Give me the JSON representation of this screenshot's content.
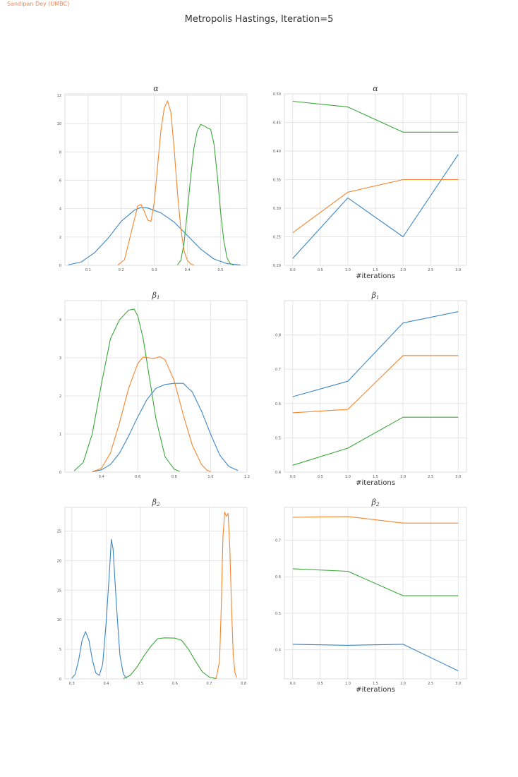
{
  "watermark": "Sandipan Dey (UMBC)",
  "suptitle": "Metropolis Hastings, Iteration=5",
  "colors": {
    "s1": "#3a86c8",
    "s2": "#f5852d",
    "s3": "#3aa83a",
    "grid": "#e5e5e5",
    "spine": "#dddddd"
  },
  "chart_data": [
    {
      "type": "line",
      "title": "α",
      "title_sub": "",
      "xlabel": "",
      "xlim": [
        0.03,
        0.58
      ],
      "ylim": [
        0,
        12.1
      ],
      "xticks": [
        0.1,
        0.2,
        0.3,
        0.4,
        0.5
      ],
      "yticks": [
        0,
        2,
        4,
        6,
        8,
        10,
        12
      ],
      "xtick_labels": [
        "0.1",
        "0.2",
        "0.3",
        "0.4",
        "0.5"
      ],
      "ytick_labels": [
        "0",
        "2",
        "4",
        "6",
        "8",
        "10",
        "12"
      ],
      "series": [
        {
          "color": "s1",
          "points": [
            [
              0.04,
              0.03
            ],
            [
              0.08,
              0.25
            ],
            [
              0.12,
              0.9
            ],
            [
              0.16,
              1.9
            ],
            [
              0.2,
              3.1
            ],
            [
              0.24,
              3.9
            ],
            [
              0.26,
              4.1
            ],
            [
              0.28,
              4.05
            ],
            [
              0.32,
              3.7
            ],
            [
              0.36,
              3.05
            ],
            [
              0.4,
              2.1
            ],
            [
              0.44,
              1.15
            ],
            [
              0.48,
              0.45
            ],
            [
              0.52,
              0.12
            ],
            [
              0.56,
              0.02
            ]
          ]
        },
        {
          "color": "s2",
          "points": [
            [
              0.19,
              0.03
            ],
            [
              0.21,
              0.4
            ],
            [
              0.23,
              2.3
            ],
            [
              0.25,
              4.2
            ],
            [
              0.26,
              4.3
            ],
            [
              0.27,
              3.8
            ],
            [
              0.28,
              3.2
            ],
            [
              0.29,
              3.1
            ],
            [
              0.3,
              4.5
            ],
            [
              0.31,
              7.0
            ],
            [
              0.32,
              9.5
            ],
            [
              0.33,
              11.1
            ],
            [
              0.34,
              11.6
            ],
            [
              0.35,
              10.8
            ],
            [
              0.36,
              8.2
            ],
            [
              0.37,
              5.1
            ],
            [
              0.38,
              2.6
            ],
            [
              0.39,
              1.0
            ],
            [
              0.4,
              0.35
            ],
            [
              0.41,
              0.1
            ],
            [
              0.42,
              0.02
            ]
          ]
        },
        {
          "color": "s3",
          "points": [
            [
              0.37,
              0.03
            ],
            [
              0.38,
              0.35
            ],
            [
              0.39,
              1.6
            ],
            [
              0.4,
              3.9
            ],
            [
              0.41,
              6.3
            ],
            [
              0.42,
              8.3
            ],
            [
              0.43,
              9.5
            ],
            [
              0.44,
              9.95
            ],
            [
              0.45,
              9.85
            ],
            [
              0.46,
              9.7
            ],
            [
              0.47,
              9.6
            ],
            [
              0.48,
              8.6
            ],
            [
              0.49,
              6.4
            ],
            [
              0.5,
              3.8
            ],
            [
              0.51,
              1.7
            ],
            [
              0.52,
              0.5
            ],
            [
              0.53,
              0.12
            ],
            [
              0.54,
              0.02
            ]
          ]
        }
      ]
    },
    {
      "type": "line",
      "title": "α",
      "title_sub": "",
      "xlabel": "#iterations",
      "xlim": [
        -0.15,
        3.15
      ],
      "ylim": [
        0.2,
        0.5
      ],
      "xticks": [
        0,
        0.5,
        1,
        1.5,
        2,
        2.5,
        3
      ],
      "yticks": [
        0.2,
        0.25,
        0.3,
        0.35,
        0.4,
        0.45,
        0.5
      ],
      "xtick_labels": [
        "0.0",
        "0.5",
        "1.0",
        "1.5",
        "2.0",
        "2.5",
        "3.0"
      ],
      "ytick_labels": [
        "0.20",
        "0.25",
        "0.30",
        "0.35",
        "0.40",
        "0.45",
        "0.50"
      ],
      "series": [
        {
          "color": "s1",
          "points": [
            [
              0,
              0.212
            ],
            [
              1,
              0.318
            ],
            [
              2,
              0.25
            ],
            [
              3,
              0.394
            ]
          ]
        },
        {
          "color": "s2",
          "points": [
            [
              0,
              0.257
            ],
            [
              1,
              0.328
            ],
            [
              2,
              0.35
            ],
            [
              3,
              0.35
            ]
          ]
        },
        {
          "color": "s3",
          "points": [
            [
              0,
              0.487
            ],
            [
              1,
              0.477
            ],
            [
              2,
              0.433
            ],
            [
              3,
              0.433
            ]
          ]
        }
      ]
    },
    {
      "type": "line",
      "title": "β",
      "title_sub": "1",
      "xlabel": "",
      "xlim": [
        0.2,
        1.2
      ],
      "ylim": [
        0,
        4.5
      ],
      "xticks": [
        0.4,
        0.6,
        0.8,
        1.0,
        1.2
      ],
      "yticks": [
        0,
        1,
        2,
        3,
        4
      ],
      "xtick_labels": [
        "0.4",
        "0.6",
        "0.8",
        "1.0",
        "1.2"
      ],
      "ytick_labels": [
        "0",
        "1",
        "2",
        "3",
        "4"
      ],
      "series": [
        {
          "color": "s1",
          "points": [
            [
              0.35,
              0.01
            ],
            [
              0.4,
              0.06
            ],
            [
              0.45,
              0.2
            ],
            [
              0.5,
              0.5
            ],
            [
              0.55,
              0.95
            ],
            [
              0.6,
              1.45
            ],
            [
              0.65,
              1.9
            ],
            [
              0.7,
              2.2
            ],
            [
              0.75,
              2.3
            ],
            [
              0.8,
              2.33
            ],
            [
              0.85,
              2.33
            ],
            [
              0.9,
              2.1
            ],
            [
              0.95,
              1.6
            ],
            [
              1.0,
              1.0
            ],
            [
              1.05,
              0.45
            ],
            [
              1.1,
              0.15
            ],
            [
              1.15,
              0.04
            ]
          ]
        },
        {
          "color": "s2",
          "points": [
            [
              0.35,
              0.01
            ],
            [
              0.4,
              0.1
            ],
            [
              0.45,
              0.5
            ],
            [
              0.5,
              1.3
            ],
            [
              0.55,
              2.2
            ],
            [
              0.6,
              2.85
            ],
            [
              0.63,
              3.02
            ],
            [
              0.66,
              3.0
            ],
            [
              0.69,
              2.98
            ],
            [
              0.72,
              3.03
            ],
            [
              0.75,
              2.95
            ],
            [
              0.8,
              2.4
            ],
            [
              0.85,
              1.5
            ],
            [
              0.9,
              0.7
            ],
            [
              0.95,
              0.2
            ],
            [
              0.98,
              0.05
            ],
            [
              1.0,
              0.01
            ]
          ]
        },
        {
          "color": "s3",
          "points": [
            [
              0.25,
              0.03
            ],
            [
              0.3,
              0.25
            ],
            [
              0.35,
              1.0
            ],
            [
              0.4,
              2.3
            ],
            [
              0.45,
              3.5
            ],
            [
              0.5,
              4.0
            ],
            [
              0.55,
              4.25
            ],
            [
              0.58,
              4.28
            ],
            [
              0.6,
              4.1
            ],
            [
              0.63,
              3.5
            ],
            [
              0.65,
              2.9
            ],
            [
              0.7,
              1.4
            ],
            [
              0.75,
              0.4
            ],
            [
              0.8,
              0.08
            ],
            [
              0.83,
              0.02
            ]
          ]
        }
      ]
    },
    {
      "type": "line",
      "title": "β",
      "title_sub": "1",
      "xlabel": "#iterations",
      "xlim": [
        -0.15,
        3.15
      ],
      "ylim": [
        0.4,
        0.9
      ],
      "xticks": [
        0,
        0.5,
        1,
        1.5,
        2,
        2.5,
        3
      ],
      "yticks": [
        0.4,
        0.5,
        0.6,
        0.7,
        0.8
      ],
      "xtick_labels": [
        "0.0",
        "0.5",
        "1.0",
        "1.5",
        "2.0",
        "2.5",
        "3.0"
      ],
      "ytick_labels": [
        "0.4",
        "0.5",
        "0.6",
        "0.7",
        "0.8"
      ],
      "series": [
        {
          "color": "s1",
          "points": [
            [
              0,
              0.62
            ],
            [
              1,
              0.665
            ],
            [
              2,
              0.835
            ],
            [
              3,
              0.868
            ]
          ]
        },
        {
          "color": "s2",
          "points": [
            [
              0,
              0.573
            ],
            [
              1,
              0.583
            ],
            [
              2,
              0.74
            ],
            [
              3,
              0.74
            ]
          ]
        },
        {
          "color": "s3",
          "points": [
            [
              0,
              0.42
            ],
            [
              1,
              0.47
            ],
            [
              2,
              0.56
            ],
            [
              3,
              0.56
            ]
          ]
        }
      ]
    },
    {
      "type": "line",
      "title": "β",
      "title_sub": "2",
      "xlabel": "",
      "xlim": [
        0.28,
        0.81
      ],
      "ylim": [
        0,
        29
      ],
      "xticks": [
        0.3,
        0.4,
        0.5,
        0.6,
        0.7,
        0.8
      ],
      "yticks": [
        0,
        5,
        10,
        15,
        20,
        25
      ],
      "xtick_labels": [
        "0.3",
        "0.4",
        "0.5",
        "0.6",
        "0.7",
        "0.8"
      ],
      "ytick_labels": [
        "0",
        "5",
        "10",
        "15",
        "20",
        "25"
      ],
      "series": [
        {
          "color": "s1",
          "points": [
            [
              0.3,
              0.1
            ],
            [
              0.31,
              0.8
            ],
            [
              0.32,
              3.2
            ],
            [
              0.33,
              6.5
            ],
            [
              0.34,
              8.0
            ],
            [
              0.35,
              6.5
            ],
            [
              0.36,
              3.2
            ],
            [
              0.37,
              1.0
            ],
            [
              0.38,
              0.6
            ],
            [
              0.39,
              2.5
            ],
            [
              0.4,
              9.5
            ],
            [
              0.41,
              18.5
            ],
            [
              0.415,
              23.6
            ],
            [
              0.42,
              22.0
            ],
            [
              0.43,
              12.5
            ],
            [
              0.44,
              4.0
            ],
            [
              0.45,
              0.8
            ],
            [
              0.46,
              0.1
            ]
          ]
        },
        {
          "color": "s3",
          "points": [
            [
              0.45,
              0.05
            ],
            [
              0.47,
              0.6
            ],
            [
              0.49,
              2.0
            ],
            [
              0.51,
              3.9
            ],
            [
              0.53,
              5.5
            ],
            [
              0.55,
              6.8
            ],
            [
              0.57,
              6.95
            ],
            [
              0.6,
              6.9
            ],
            [
              0.62,
              6.5
            ],
            [
              0.64,
              5.0
            ],
            [
              0.66,
              3.0
            ],
            [
              0.68,
              1.2
            ],
            [
              0.7,
              0.3
            ],
            [
              0.72,
              0.05
            ]
          ]
        },
        {
          "color": "s2",
          "points": [
            [
              0.72,
              0.05
            ],
            [
              0.73,
              3.0
            ],
            [
              0.735,
              12.0
            ],
            [
              0.74,
              24.0
            ],
            [
              0.745,
              28.2
            ],
            [
              0.75,
              27.5
            ],
            [
              0.755,
              28.0
            ],
            [
              0.76,
              22.0
            ],
            [
              0.765,
              12.0
            ],
            [
              0.77,
              4.0
            ],
            [
              0.775,
              1.0
            ],
            [
              0.78,
              0.2
            ]
          ]
        }
      ]
    },
    {
      "type": "line",
      "title": "β",
      "title_sub": "2",
      "xlabel": "#iterations",
      "xlim": [
        -0.15,
        3.15
      ],
      "ylim": [
        0.32,
        0.79
      ],
      "xticks": [
        0,
        0.5,
        1,
        1.5,
        2,
        2.5,
        3
      ],
      "yticks": [
        0.4,
        0.5,
        0.6,
        0.7
      ],
      "xtick_labels": [
        "0.0",
        "0.5",
        "1.0",
        "1.5",
        "2.0",
        "2.5",
        "3.0"
      ],
      "ytick_labels": [
        "0.4",
        "0.5",
        "0.6",
        "0.7"
      ],
      "series": [
        {
          "color": "s1",
          "points": [
            [
              0,
              0.415
            ],
            [
              1,
              0.412
            ],
            [
              2,
              0.415
            ],
            [
              3,
              0.342
            ]
          ]
        },
        {
          "color": "s2",
          "points": [
            [
              0,
              0.763
            ],
            [
              1,
              0.765
            ],
            [
              2,
              0.747
            ],
            [
              3,
              0.747
            ]
          ]
        },
        {
          "color": "s3",
          "points": [
            [
              0,
              0.622
            ],
            [
              1,
              0.615
            ],
            [
              2,
              0.548
            ],
            [
              3,
              0.548
            ]
          ]
        }
      ]
    }
  ]
}
